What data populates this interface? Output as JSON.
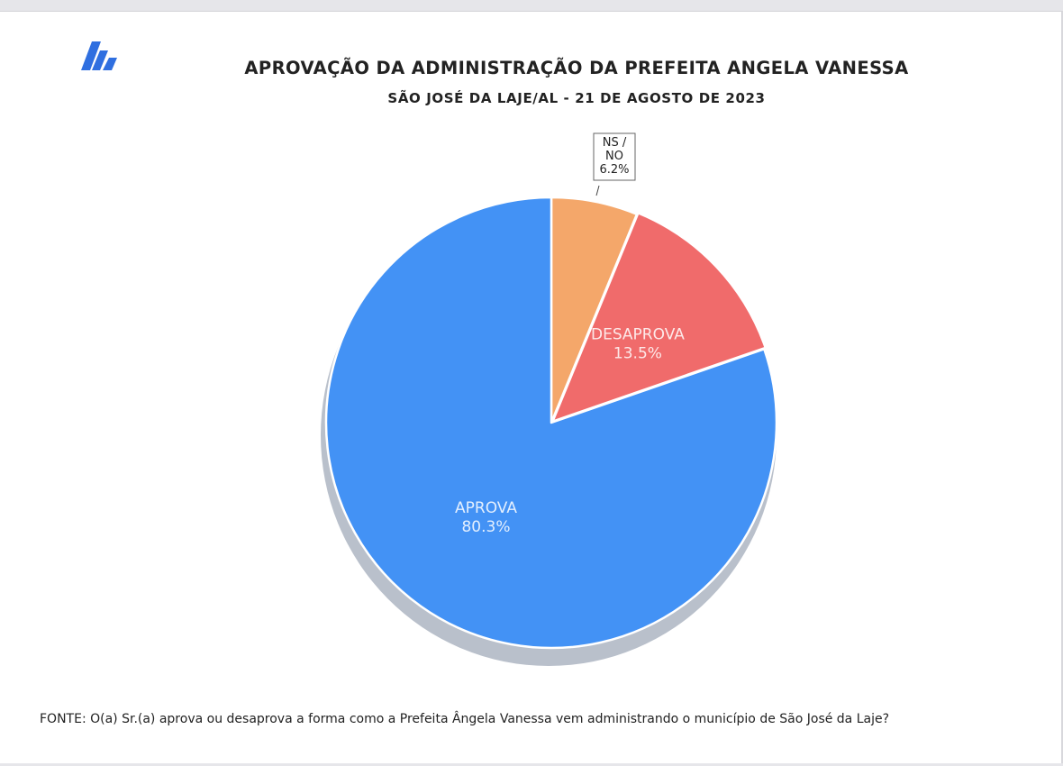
{
  "header": {
    "title": "APROVAÇÃO DA ADMINISTRAÇÃO DA PREFEITA ANGELA VANESSA",
    "subtitle": "SÃO JOSÉ DA LAJE/AL - 21 DE AGOSTO DE 2023"
  },
  "footer": {
    "source": "FONTE: O(a) Sr.(a) aprova ou desaprova a forma como a Prefeita Ângela Vanessa vem administrando o município de São José da Laje?"
  },
  "logo": {
    "icon": "stacked-bars-logo-icon",
    "color": "#2f6fe0"
  },
  "chart_data": {
    "type": "pie",
    "categories": [
      "NS / NO",
      "DESAPROVA",
      "APROVA"
    ],
    "values": [
      6.2,
      13.5,
      80.3
    ],
    "labels": [
      "6.2%",
      "13.5%",
      "80.3%"
    ],
    "colors": [
      "#f4a76a",
      "#f06b6b",
      "#4392f5"
    ],
    "start": "12 o'clock, clockwise",
    "exploded": "DESAPROVA",
    "legend": "none",
    "label_style": "inside-slice; NS / NO in callout box above"
  }
}
